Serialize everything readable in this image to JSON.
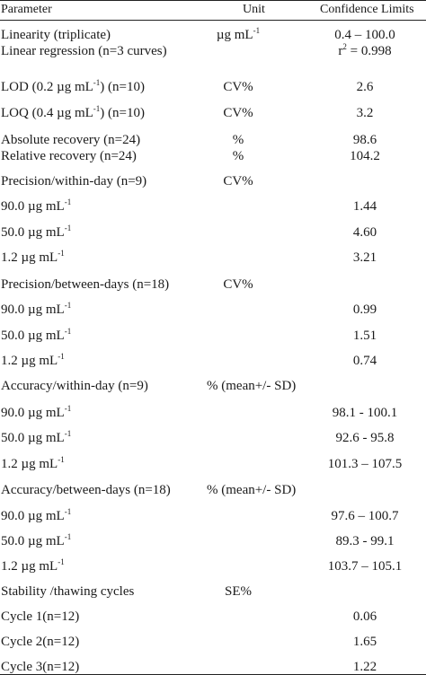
{
  "headers": {
    "parameter": "Parameter",
    "unit": "Unit",
    "limits": "Confidence Limits"
  },
  "rows": [
    {
      "param": "Linearity (triplicate)",
      "unit": "µg mL",
      "unit_sup": "-1",
      "value": "0.4 – 100.0"
    },
    {
      "param": "Linear regression (n=3 curves)",
      "unit": "",
      "value": "r",
      "value_sup": "2",
      "value_after": " = 0.998"
    },
    {
      "param": "LOD (0.2 µg mL",
      "param_sup": "-1",
      "param_after": ") (n=10)",
      "unit": "CV%",
      "value": "2.6"
    },
    {
      "param": "LOQ (0.4 µg mL",
      "param_sup": "-1",
      "param_after": ") (n=10)",
      "unit": "CV%",
      "value": "3.2"
    },
    {
      "param": "Absolute recovery (n=24)",
      "unit": "%",
      "value": "98.6"
    },
    {
      "param": "Relative recovery (n=24)",
      "unit": "%",
      "value": "104.2"
    },
    {
      "param": "Precision/within-day (n=9)",
      "unit": "CV%",
      "value": ""
    },
    {
      "param": "90.0 µg mL",
      "param_sup": "-1",
      "unit": "",
      "value": "1.44"
    },
    {
      "param": "50.0 µg mL",
      "param_sup": "-1",
      "unit": "",
      "value": "4.60"
    },
    {
      "param": "1.2 µg mL",
      "param_sup": "-1",
      "unit": "",
      "value": "3.21"
    },
    {
      "param": "Precision/between-days (n=18)",
      "unit": "CV%",
      "value": ""
    },
    {
      "param": "90.0 µg mL",
      "param_sup": "-1",
      "unit": "",
      "value": "0.99"
    },
    {
      "param": "50.0 µg mL",
      "param_sup": "-1",
      "unit": "",
      "value": "1.51"
    },
    {
      "param": "1.2 µg mL",
      "param_sup": "-1",
      "unit": "",
      "value": "0.74"
    },
    {
      "param": "Accuracy/within-day (n=9)",
      "unit": "% (mean+/- SD)",
      "value": ""
    },
    {
      "param": "90.0 µg mL",
      "param_sup": "-1",
      "unit": "",
      "value": "98.1 - 100.1"
    },
    {
      "param": "50.0 µg mL",
      "param_sup": "-1",
      "unit": "",
      "value": "92.6 - 95.8"
    },
    {
      "param": "1.2 µg mL",
      "param_sup": "-1",
      "unit": "",
      "value": "101.3 – 107.5"
    },
    {
      "param": "Accuracy/between-days (n=18)",
      "unit": "% (mean+/- SD)",
      "value": ""
    },
    {
      "param": "90.0 µg mL",
      "param_sup": "-1",
      "unit": "",
      "value": "97.6 – 100.7"
    },
    {
      "param": "50.0 µg mL",
      "param_sup": "-1",
      "unit": "",
      "value": "89.3 - 99.1"
    },
    {
      "param": "1.2 µg mL",
      "param_sup": "-1",
      "unit": "",
      "value": "103.7 – 105.1"
    },
    {
      "param": "Stability /thawing cycles",
      "unit": "SE%",
      "value": ""
    },
    {
      "param": "Cycle 1(n=12)",
      "unit": "",
      "value": "0.06"
    },
    {
      "param": "Cycle 2(n=12)",
      "unit": "",
      "value": "1.65"
    },
    {
      "param": "Cycle 3(n=12)",
      "unit": "",
      "value": "1.22"
    }
  ]
}
